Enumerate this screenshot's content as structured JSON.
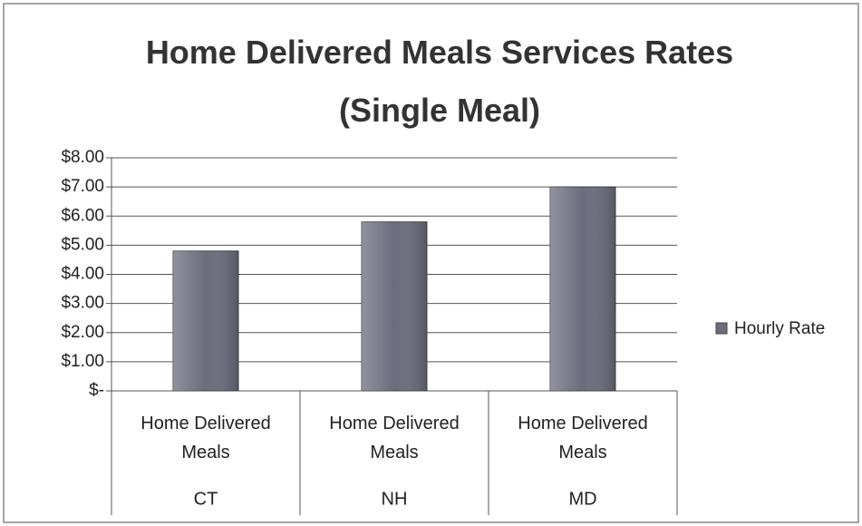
{
  "chart_data": {
    "type": "bar",
    "title": "Home Delivered Meals Services Rates (Single Meal)",
    "subcategories": [
      "Home Delivered Meals",
      "Home Delivered Meals",
      "Home Delivered Meals"
    ],
    "categories": [
      "CT",
      "NH",
      "MD"
    ],
    "series": [
      {
        "name": "Hourly Rate",
        "color": "#6b6d7e",
        "values": [
          4.8,
          5.8,
          7.0
        ]
      }
    ],
    "ylim": [
      0,
      8
    ],
    "yticks": [
      {
        "value": 0,
        "label": "$-"
      },
      {
        "value": 1,
        "label": "$1.00"
      },
      {
        "value": 2,
        "label": "$2.00"
      },
      {
        "value": 3,
        "label": "$3.00"
      },
      {
        "value": 4,
        "label": "$4.00"
      },
      {
        "value": 5,
        "label": "$5.00"
      },
      {
        "value": 6,
        "label": "$6.00"
      },
      {
        "value": 7,
        "label": "$7.00"
      },
      {
        "value": 8,
        "label": "$8.00"
      }
    ],
    "grid": true,
    "legend": "right"
  }
}
